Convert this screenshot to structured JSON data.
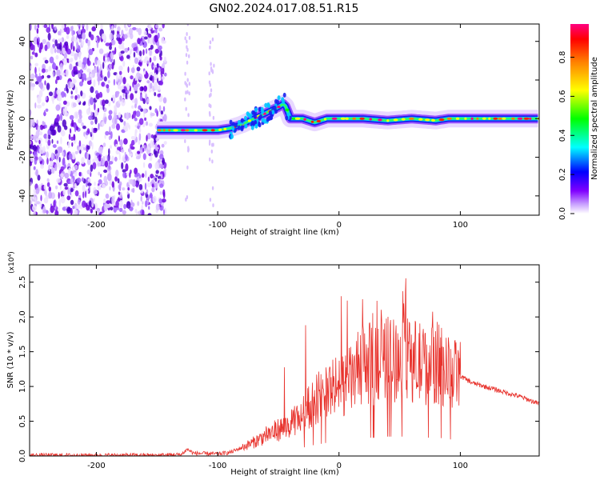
{
  "title": "GN02.2024.017.08.51.R15",
  "chart_data": [
    {
      "type": "heatmap",
      "name": "spectrogram",
      "xlabel": "Height of straight line (km)",
      "ylabel": "Frequency (Hz)",
      "xlim": [
        -255,
        165
      ],
      "ylim": [
        -50,
        49
      ],
      "xticks": [
        "-200",
        "-100",
        "0",
        "100"
      ],
      "yticks": [
        "-40",
        "-20",
        "0",
        "20",
        "40"
      ],
      "xtick_values": [
        -200,
        -100,
        0,
        100
      ],
      "ytick_values": [
        -40,
        -20,
        0,
        20,
        40
      ],
      "colorbar": {
        "label": "Normalized spectral amplitude",
        "ticks": [
          "0.0",
          "0.2",
          "0.4",
          "0.6",
          "0.8"
        ],
        "tick_values": [
          0.0,
          0.2,
          0.4,
          0.6,
          0.8
        ],
        "range": [
          0,
          0.97
        ],
        "colormap": [
          "#ffffff",
          "#7a00e6",
          "#0000ff",
          "#00ffff",
          "#00ff00",
          "#ffff00",
          "#ff8000",
          "#ff0000",
          "#ff0080"
        ]
      },
      "noise_region_x": [
        -255,
        -143
      ],
      "signal_track": {
        "x": [
          -150,
          -130,
          -110,
          -100,
          -90,
          -80,
          -70,
          -60,
          -50,
          -45,
          -40,
          -30,
          -20,
          -10,
          0,
          20,
          40,
          60,
          80,
          90,
          100,
          120,
          140,
          165
        ],
        "y": [
          -6,
          -6,
          -6,
          -6,
          -5,
          -3,
          0,
          3,
          6,
          8,
          0,
          0,
          -2,
          0,
          0,
          0,
          -1,
          0,
          -1,
          0,
          0,
          0,
          0,
          0
        ]
      },
      "grid": false
    },
    {
      "type": "line",
      "name": "snr",
      "xlabel": "Height of straight line (km)",
      "ylabel": "SNR (10 * v/v)",
      "scale_label": "(x10^4)",
      "xlim": [
        -255,
        165
      ],
      "ylim": [
        0,
        2.75
      ],
      "xticks": [
        "-200",
        "-100",
        "0",
        "100"
      ],
      "yticks": [
        "0.0",
        "0.5",
        "1.0",
        "1.5",
        "2.0",
        "2.5"
      ],
      "xtick_values": [
        -200,
        -100,
        0,
        100
      ],
      "ytick_values": [
        0,
        0.5,
        1.0,
        1.5,
        2.0,
        2.5
      ],
      "color": "#e8332d",
      "envelope": {
        "x": [
          -255,
          -150,
          -130,
          -125,
          -120,
          -100,
          -90,
          -80,
          -70,
          -60,
          -50,
          -40,
          -30,
          -20,
          -10,
          0,
          10,
          20,
          30,
          40,
          50,
          60,
          70,
          80,
          90,
          100,
          110,
          130,
          150,
          165
        ],
        "y": [
          0.01,
          0.01,
          0.02,
          0.1,
          0.04,
          0.03,
          0.05,
          0.12,
          0.2,
          0.3,
          0.38,
          0.45,
          0.6,
          0.8,
          0.95,
          1.0,
          1.1,
          1.35,
          1.3,
          1.4,
          1.4,
          1.4,
          1.3,
          1.35,
          1.2,
          1.15,
          1.05,
          0.95,
          0.85,
          0.75
        ]
      },
      "grid": false
    }
  ]
}
